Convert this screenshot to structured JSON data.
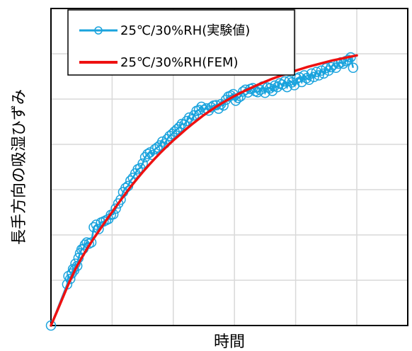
{
  "chart_data": {
    "type": "line",
    "title": "",
    "xlabel": "時間",
    "ylabel": "長手方向の吸湿ひずみ",
    "xlim": [
      0,
      1
    ],
    "ylim": [
      0,
      1
    ],
    "x_ticks_shown": false,
    "y_ticks_shown": false,
    "grid": true,
    "legend_position": "top-left",
    "series": [
      {
        "name": "25℃/30%RH(実験値)",
        "color": "#1aa3dd",
        "style": "line-with-open-circle-markers",
        "x": [
          0.0,
          0.053,
          0.057,
          0.063,
          0.068,
          0.072,
          0.076,
          0.08,
          0.086,
          0.09,
          0.095,
          0.1,
          0.106,
          0.111,
          0.117,
          0.124,
          0.132,
          0.14,
          0.148,
          0.156,
          0.164,
          0.172,
          0.18,
          0.188,
          0.196,
          0.204,
          0.212,
          0.22,
          0.228,
          0.236,
          0.244,
          0.252,
          0.26,
          0.268,
          0.276,
          0.284,
          0.292,
          0.3,
          0.308,
          0.316,
          0.324,
          0.332,
          0.34,
          0.348,
          0.356,
          0.364,
          0.372,
          0.38,
          0.388,
          0.396,
          0.404,
          0.412,
          0.42,
          0.428,
          0.436,
          0.444,
          0.452,
          0.46,
          0.468,
          0.476,
          0.484,
          0.492,
          0.5,
          0.508,
          0.516,
          0.524,
          0.532,
          0.54,
          0.548,
          0.556,
          0.564,
          0.572,
          0.58,
          0.588,
          0.596,
          0.604,
          0.612,
          0.62,
          0.628,
          0.636,
          0.644,
          0.652,
          0.66,
          0.668,
          0.676,
          0.684,
          0.692,
          0.7,
          0.708,
          0.716,
          0.724,
          0.732,
          0.74,
          0.748,
          0.756,
          0.764,
          0.772,
          0.78,
          0.788,
          0.796,
          0.804,
          0.812,
          0.82,
          0.828,
          0.836,
          0.844,
          0.852,
          0.86,
          0.868,
          0.876,
          0.884,
          0.892,
          0.9,
          0.908,
          0.916,
          0.924,
          0.932,
          0.94,
          0.948,
          0.956,
          0.964,
          0.972,
          0.98,
          0.988
        ],
        "y": [
          0.0,
          0.13,
          0.156,
          0.147,
          0.164,
          0.178,
          0.174,
          0.195,
          0.188,
          0.213,
          0.228,
          0.24,
          0.242,
          0.255,
          0.262,
          0.258,
          0.262,
          0.31,
          0.318,
          0.304,
          0.325,
          0.328,
          0.332,
          0.336,
          0.349,
          0.351,
          0.369,
          0.385,
          0.397,
          0.421,
          0.434,
          0.44,
          0.457,
          0.466,
          0.48,
          0.493,
          0.497,
          0.511,
          0.531,
          0.541,
          0.546,
          0.538,
          0.556,
          0.562,
          0.568,
          0.58,
          0.574,
          0.588,
          0.598,
          0.604,
          0.612,
          0.619,
          0.626,
          0.636,
          0.634,
          0.645,
          0.656,
          0.65,
          0.663,
          0.677,
          0.68,
          0.69,
          0.68,
          0.685,
          0.678,
          0.688,
          0.694,
          0.695,
          0.684,
          0.698,
          0.694,
          0.712,
          0.722,
          0.725,
          0.73,
          0.709,
          0.718,
          0.723,
          0.738,
          0.744,
          0.735,
          0.746,
          0.749,
          0.739,
          0.736,
          0.743,
          0.754,
          0.734,
          0.751,
          0.748,
          0.74,
          0.757,
          0.752,
          0.764,
          0.76,
          0.77,
          0.752,
          0.772,
          0.767,
          0.758,
          0.779,
          0.783,
          0.768,
          0.789,
          0.78,
          0.775,
          0.795,
          0.784,
          0.8,
          0.789,
          0.804,
          0.795,
          0.812,
          0.804,
          0.815,
          0.823,
          0.813,
          0.826,
          0.83,
          0.826,
          0.834,
          0.838,
          0.846,
          0.813
        ]
      },
      {
        "name": "25℃/30%RH(FEM)",
        "color": "#ee1111",
        "style": "solid-line",
        "x": [
          0.0,
          0.02,
          0.04,
          0.06,
          0.08,
          0.1,
          0.12,
          0.14,
          0.16,
          0.18,
          0.2,
          0.22,
          0.24,
          0.26,
          0.28,
          0.3,
          0.32,
          0.34,
          0.36,
          0.38,
          0.4,
          0.42,
          0.44,
          0.46,
          0.48,
          0.5,
          0.52,
          0.54,
          0.56,
          0.58,
          0.6,
          0.62,
          0.64,
          0.66,
          0.68,
          0.7,
          0.72,
          0.74,
          0.76,
          0.78,
          0.8,
          0.82,
          0.84,
          0.86,
          0.88,
          0.9,
          0.92,
          0.94,
          0.96,
          0.98,
          1.0
        ],
        "y": [
          0.0,
          0.045,
          0.091,
          0.137,
          0.178,
          0.213,
          0.245,
          0.275,
          0.303,
          0.331,
          0.358,
          0.385,
          0.411,
          0.437,
          0.461,
          0.484,
          0.506,
          0.527,
          0.547,
          0.566,
          0.584,
          0.601,
          0.618,
          0.634,
          0.649,
          0.664,
          0.677,
          0.69,
          0.702,
          0.713,
          0.724,
          0.734,
          0.743,
          0.752,
          0.761,
          0.769,
          0.777,
          0.784,
          0.791,
          0.798,
          0.804,
          0.81,
          0.816,
          0.821,
          0.826,
          0.831,
          0.836,
          0.84,
          0.844,
          0.848,
          0.852
        ]
      }
    ]
  }
}
